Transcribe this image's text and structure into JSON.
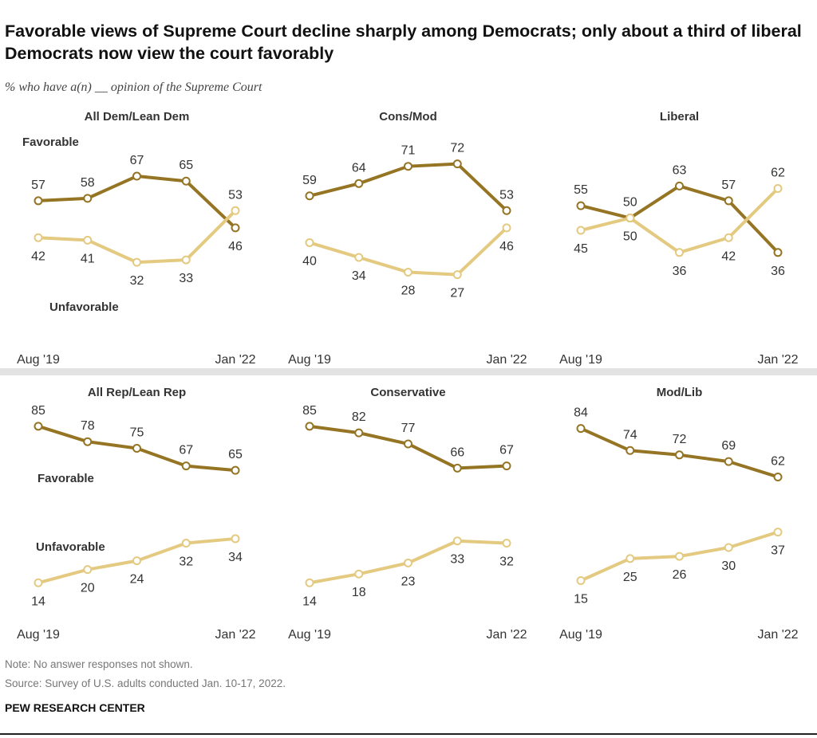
{
  "title": "Favorable views of Supreme Court decline sharply among Democrats; only about a third of liberal Democrats now view the court favorably",
  "subtitle": "% who have a(n) __ opinion of the Supreme Court",
  "note": "Note: No answer responses not shown.",
  "source": "Source: Survey of U.S. adults conducted Jan. 10-17, 2022.",
  "brand": "PEW RESEARCH CENTER",
  "chart_data": [
    {
      "type": "line",
      "title": "All Dem/Lean Dem",
      "title_color": "#3f5f80",
      "categories": [
        "Aug '19",
        null,
        null,
        null,
        "Jan '22"
      ],
      "ylim": [
        0,
        90
      ],
      "series": [
        {
          "name": "Favorable",
          "color": "#957423",
          "values": [
            57,
            58,
            67,
            65,
            46
          ]
        },
        {
          "name": "Unfavorable",
          "color": "#e4ca80",
          "values": [
            42,
            41,
            32,
            33,
            53
          ]
        }
      ]
    },
    {
      "type": "line",
      "title": "Cons/Mod",
      "title_color": "#7fa3c2",
      "categories": [
        "Aug '19",
        null,
        null,
        null,
        "Jan '22"
      ],
      "ylim": [
        0,
        90
      ],
      "series": [
        {
          "color": "#957423",
          "values": [
            59,
            64,
            71,
            72,
            53
          ]
        },
        {
          "color": "#e4ca80",
          "values": [
            40,
            34,
            28,
            27,
            46
          ]
        }
      ]
    },
    {
      "type": "line",
      "title": "Liberal",
      "title_color": "#1f3b5c",
      "categories": [
        "Aug '19",
        null,
        null,
        null,
        "Jan '22"
      ],
      "ylim": [
        0,
        90
      ],
      "series": [
        {
          "color": "#957423",
          "values": [
            55,
            50,
            63,
            57,
            36
          ]
        },
        {
          "color": "#e4ca80",
          "values": [
            45,
            50,
            36,
            42,
            62
          ]
        }
      ]
    },
    {
      "type": "line",
      "title": "All Rep/Lean Rep",
      "title_color": "#c23a2e",
      "categories": [
        "Aug '19",
        null,
        null,
        null,
        "Jan '22"
      ],
      "ylim": [
        0,
        90
      ],
      "series": [
        {
          "name": "Favorable",
          "color": "#957423",
          "values": [
            85,
            78,
            75,
            67,
            65
          ]
        },
        {
          "name": "Unfavorable",
          "color": "#e4ca80",
          "values": [
            14,
            20,
            24,
            32,
            34
          ]
        }
      ]
    },
    {
      "type": "line",
      "title": "Conservative",
      "title_color": "#8c1f1a",
      "categories": [
        "Aug '19",
        null,
        null,
        null,
        "Jan '22"
      ],
      "ylim": [
        0,
        90
      ],
      "series": [
        {
          "color": "#957423",
          "values": [
            85,
            82,
            77,
            66,
            67
          ]
        },
        {
          "color": "#e4ca80",
          "values": [
            14,
            18,
            23,
            33,
            32
          ]
        }
      ]
    },
    {
      "type": "line",
      "title": "Mod/Lib",
      "title_color": "#e3806f",
      "categories": [
        "Aug '19",
        null,
        null,
        null,
        "Jan '22"
      ],
      "ylim": [
        0,
        90
      ],
      "series": [
        {
          "color": "#957423",
          "values": [
            84,
            74,
            72,
            69,
            62
          ]
        },
        {
          "color": "#e4ca80",
          "values": [
            15,
            25,
            26,
            30,
            37
          ]
        }
      ]
    }
  ]
}
